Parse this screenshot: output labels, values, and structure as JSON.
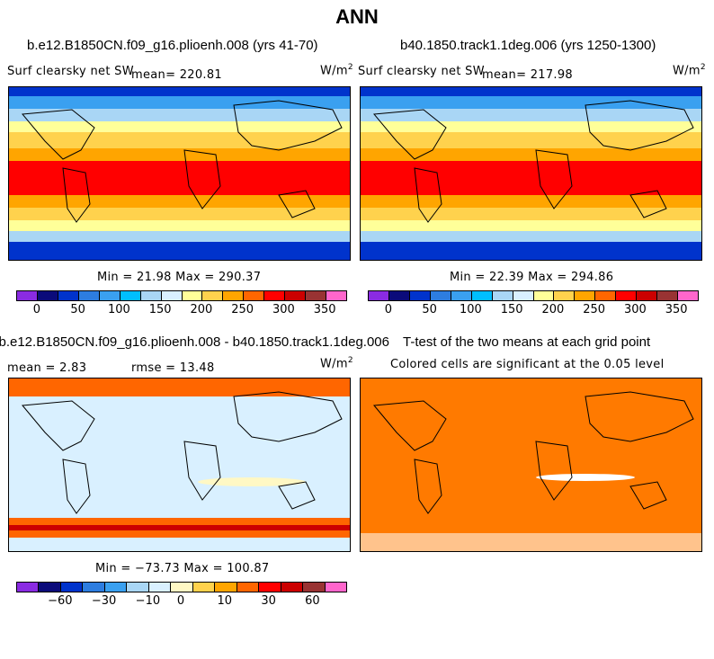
{
  "figure_title": "ANN",
  "chart_data": [
    {
      "type": "heatmap",
      "title": "b.e12.B1850CN.f09_g16.plioenh.008 (yrs 41-70)",
      "variable": "Surf clearsky net SW",
      "mean_label": "mean= 220.81",
      "units": "W/m",
      "units_exp": "2",
      "stats_label": "Min =  21.98 Max = 290.37",
      "colorbar_ticks": [
        "0",
        "50",
        "100",
        "150",
        "200",
        "250",
        "300",
        "350"
      ],
      "colorbar_levels": [
        0,
        25,
        50,
        75,
        100,
        125,
        150,
        175,
        200,
        225,
        250,
        275,
        300,
        325,
        350
      ],
      "min": 21.98,
      "max": 290.37,
      "mean": 220.81
    },
    {
      "type": "heatmap",
      "title": "b40.1850.track1.1deg.006 (yrs 1250-1300)",
      "variable": "Surf clearsky net SW",
      "mean_label": "mean= 217.98",
      "units": "W/m",
      "units_exp": "2",
      "stats_label": "Min =  22.39 Max = 294.86",
      "colorbar_ticks": [
        "0",
        "50",
        "100",
        "150",
        "200",
        "250",
        "300",
        "350"
      ],
      "colorbar_levels": [
        0,
        25,
        50,
        75,
        100,
        125,
        150,
        175,
        200,
        225,
        250,
        275,
        300,
        325,
        350
      ],
      "min": 22.39,
      "max": 294.86,
      "mean": 217.98
    },
    {
      "type": "heatmap",
      "title": "b.e12.B1850CN.f09_g16.plioenh.008 - b40.1850.track1.1deg.006",
      "mean_label": "mean =    2.83",
      "rmse_label": "rmse =  13.48",
      "units": "W/m",
      "units_exp": "2",
      "stats_label": "Min = −73.73 Max = 100.87",
      "colorbar_ticks": [
        "−60",
        "−30",
        "−10",
        "0",
        "10",
        "30",
        "60"
      ],
      "colorbar_levels": [
        -80,
        -60,
        -45,
        -30,
        -20,
        -10,
        -5,
        0,
        5,
        10,
        20,
        30,
        45,
        60,
        80
      ],
      "min": -73.73,
      "max": 100.87,
      "mean": 2.83,
      "rmse": 13.48
    },
    {
      "type": "heatmap",
      "title": "T-test of the two means at each grid point",
      "subtitle": "Colored cells are significant at the 0.05 level"
    }
  ],
  "colors": {
    "abs_palette": [
      "#8a2be2",
      "#0b0b7a",
      "#0033cc",
      "#2d7de0",
      "#3aa0f0",
      "#00bfff",
      "#a9d6f5",
      "#d9f0ff",
      "#ffff99",
      "#ffd24d",
      "#ffa500",
      "#ff6600",
      "#ff0000",
      "#cc0000",
      "#993333",
      "#ff66cc"
    ],
    "diff_palette": [
      "#8a2be2",
      "#0b0b7a",
      "#0033cc",
      "#2d7de0",
      "#3aa0f0",
      "#a9d6f5",
      "#d9f0ff",
      "#fff8c4",
      "#ffd24d",
      "#ffa500",
      "#ff6600",
      "#ff0000",
      "#cc0000",
      "#993333",
      "#ff66cc"
    ],
    "ttest": "#ff7a00"
  }
}
